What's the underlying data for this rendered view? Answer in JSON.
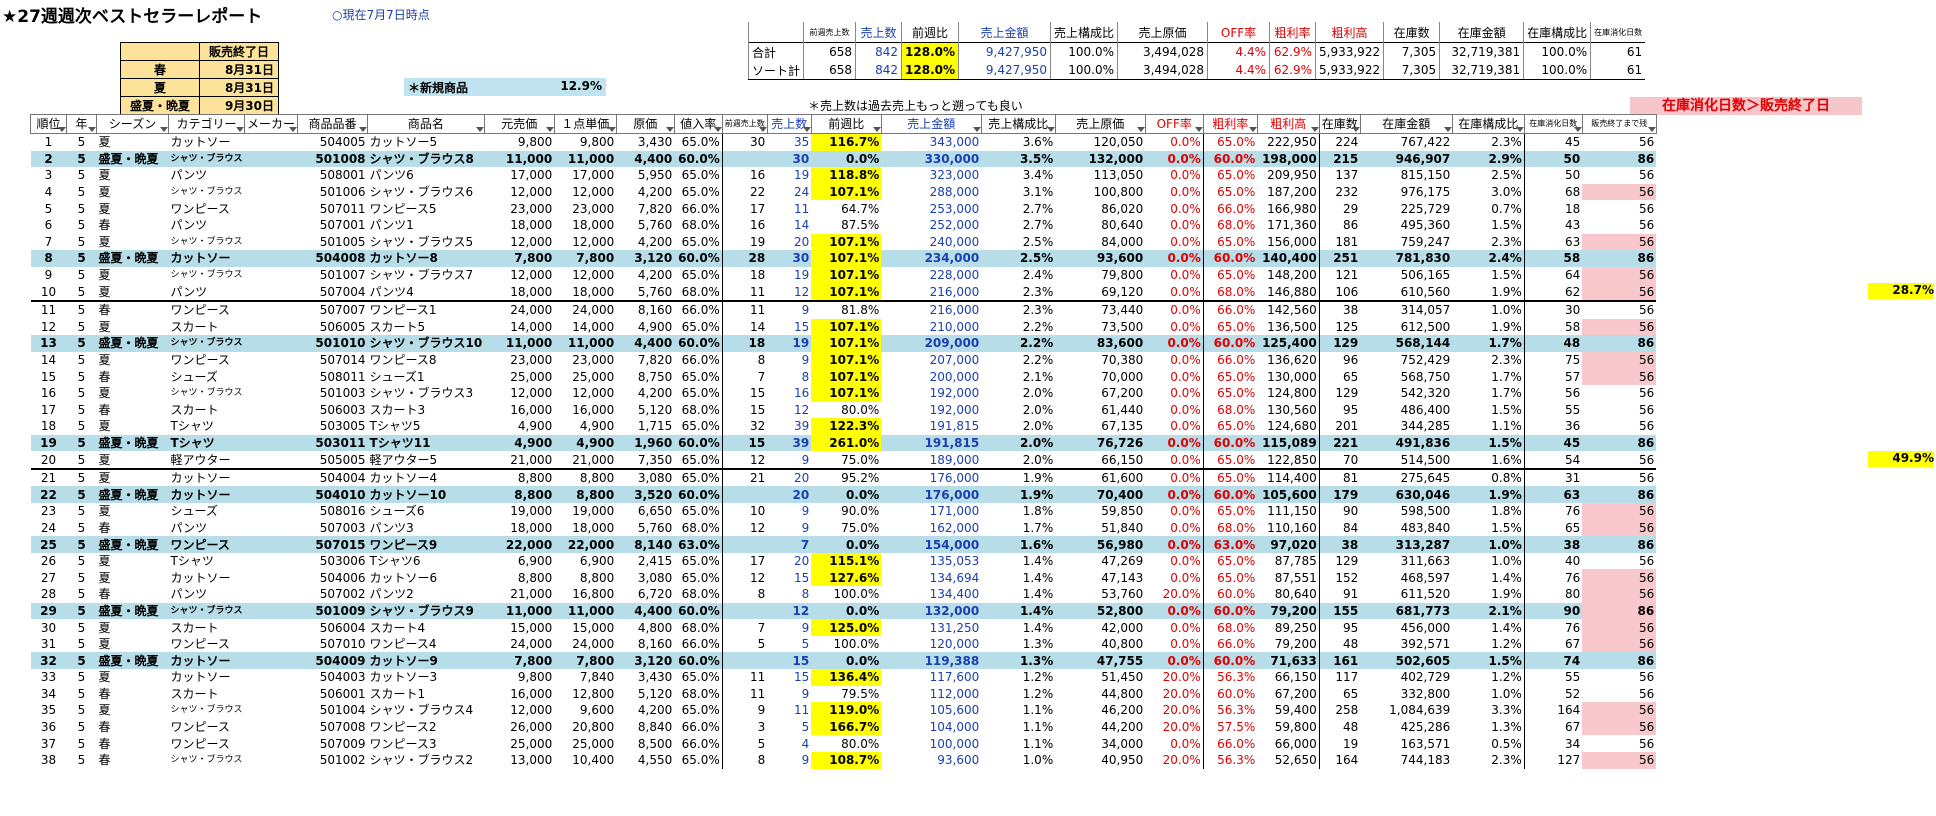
{
  "title": "★27週週次ベストセラーレポート",
  "as_of": "○現在7月7日時点",
  "season_end": {
    "header": "販売終了日",
    "rows": [
      {
        "season": "春",
        "date": "8月31日"
      },
      {
        "season": "夏",
        "date": "8月31日"
      },
      {
        "season": "盛夏・晩夏",
        "date": "9月30日"
      }
    ]
  },
  "new_products": {
    "label": "＊新規商品",
    "value": "12.9%"
  },
  "note_sales": "＊売上数は過去売上もっと遡っても良い",
  "note_alert": "在庫消化日数＞販売終了日",
  "summary": {
    "headers": [
      "",
      "前週売上数",
      "売上数",
      "前週比",
      "売上金額",
      "売上構成比",
      "売上原価",
      "OFF率",
      "粗利率",
      "粗利高",
      "在庫数",
      "在庫金額",
      "在庫構成比",
      "在庫消化日数"
    ],
    "rows": [
      [
        "合計",
        "658",
        "842",
        "128.0%",
        "9,427,950",
        "100.0%",
        "3,494,028",
        "4.4%",
        "62.9%",
        "5,933,922",
        "7,305",
        "32,719,381",
        "100.0%",
        "61"
      ],
      [
        "ソート計",
        "658",
        "842",
        "128.0%",
        "9,427,950",
        "100.0%",
        "3,494,028",
        "4.4%",
        "62.9%",
        "5,933,922",
        "7,305",
        "32,719,381",
        "100.0%",
        "61"
      ]
    ]
  },
  "headers": [
    "順位",
    "年",
    "シーズン",
    "カテゴリー",
    "メーカー",
    "商品品番",
    "商品名",
    "元売価",
    "１点単価",
    "原価",
    "値入率",
    "前週売上数",
    "売上数",
    "前週比",
    "売上金額",
    "売上構成比",
    "売上原価",
    "OFF率",
    "粗利率",
    "粗利高",
    "在庫数",
    "在庫金額",
    "在庫構成比",
    "在庫消化日数",
    "販売終了まで残"
  ],
  "rows": [
    [
      "1",
      "5",
      "夏",
      "カットソー",
      "",
      "504005",
      "カットソー5",
      "9,800",
      "9,800",
      "3,430",
      "65.0%",
      "30",
      "35",
      "116.7%",
      "343,000",
      "3.6%",
      "120,050",
      "0.0%",
      "65.0%",
      "222,950",
      "224",
      "767,422",
      "2.3%",
      "45",
      "56"
    ],
    [
      "2",
      "5",
      "盛夏・晩夏",
      "シャツ・ブラウス",
      "",
      "501008",
      "シャツ・ブラウス8",
      "11,000",
      "11,000",
      "4,400",
      "60.0%",
      "",
      "30",
      "0.0%",
      "330,000",
      "3.5%",
      "132,000",
      "0.0%",
      "60.0%",
      "198,000",
      "215",
      "946,907",
      "2.9%",
      "50",
      "86"
    ],
    [
      "3",
      "5",
      "夏",
      "パンツ",
      "",
      "508001",
      "パンツ6",
      "17,000",
      "17,000",
      "5,950",
      "65.0%",
      "16",
      "19",
      "118.8%",
      "323,000",
      "3.4%",
      "113,050",
      "0.0%",
      "65.0%",
      "209,950",
      "137",
      "815,150",
      "2.5%",
      "50",
      "56"
    ],
    [
      "4",
      "5",
      "夏",
      "シャツ・ブラウス",
      "",
      "501006",
      "シャツ・ブラウス6",
      "12,000",
      "12,000",
      "4,200",
      "65.0%",
      "22",
      "24",
      "107.1%",
      "288,000",
      "3.1%",
      "100,800",
      "0.0%",
      "65.0%",
      "187,200",
      "232",
      "976,175",
      "3.0%",
      "68",
      "56"
    ],
    [
      "5",
      "5",
      "夏",
      "ワンピース",
      "",
      "507011",
      "ワンピース5",
      "23,000",
      "23,000",
      "7,820",
      "66.0%",
      "17",
      "11",
      "64.7%",
      "253,000",
      "2.7%",
      "86,020",
      "0.0%",
      "66.0%",
      "166,980",
      "29",
      "225,729",
      "0.7%",
      "18",
      "56"
    ],
    [
      "6",
      "5",
      "春",
      "パンツ",
      "",
      "507001",
      "パンツ1",
      "18,000",
      "18,000",
      "5,760",
      "68.0%",
      "16",
      "14",
      "87.5%",
      "252,000",
      "2.7%",
      "80,640",
      "0.0%",
      "68.0%",
      "171,360",
      "86",
      "495,360",
      "1.5%",
      "43",
      "56"
    ],
    [
      "7",
      "5",
      "夏",
      "シャツ・ブラウス",
      "",
      "501005",
      "シャツ・ブラウス5",
      "12,000",
      "12,000",
      "4,200",
      "65.0%",
      "19",
      "20",
      "107.1%",
      "240,000",
      "2.5%",
      "84,000",
      "0.0%",
      "65.0%",
      "156,000",
      "181",
      "759,247",
      "2.3%",
      "63",
      "56"
    ],
    [
      "8",
      "5",
      "盛夏・晩夏",
      "カットソー",
      "",
      "504008",
      "カットソー8",
      "7,800",
      "7,800",
      "3,120",
      "60.0%",
      "28",
      "30",
      "107.1%",
      "234,000",
      "2.5%",
      "93,600",
      "0.0%",
      "60.0%",
      "140,400",
      "251",
      "781,830",
      "2.4%",
      "58",
      "86"
    ],
    [
      "9",
      "5",
      "夏",
      "シャツ・ブラウス",
      "",
      "501007",
      "シャツ・ブラウス7",
      "12,000",
      "12,000",
      "4,200",
      "65.0%",
      "18",
      "19",
      "107.1%",
      "228,000",
      "2.4%",
      "79,800",
      "0.0%",
      "65.0%",
      "148,200",
      "121",
      "506,165",
      "1.5%",
      "64",
      "56"
    ],
    [
      "10",
      "5",
      "夏",
      "パンツ",
      "",
      "507004",
      "パンツ4",
      "18,000",
      "18,000",
      "5,760",
      "68.0%",
      "11",
      "12",
      "107.1%",
      "216,000",
      "2.3%",
      "69,120",
      "0.0%",
      "68.0%",
      "146,880",
      "106",
      "610,560",
      "1.9%",
      "62",
      "56"
    ],
    [
      "11",
      "5",
      "春",
      "ワンピース",
      "",
      "507007",
      "ワンピース1",
      "24,000",
      "24,000",
      "8,160",
      "66.0%",
      "11",
      "9",
      "81.8%",
      "216,000",
      "2.3%",
      "73,440",
      "0.0%",
      "66.0%",
      "142,560",
      "38",
      "314,057",
      "1.0%",
      "30",
      "56"
    ],
    [
      "12",
      "5",
      "夏",
      "スカート",
      "",
      "506005",
      "スカート5",
      "14,000",
      "14,000",
      "4,900",
      "65.0%",
      "14",
      "15",
      "107.1%",
      "210,000",
      "2.2%",
      "73,500",
      "0.0%",
      "65.0%",
      "136,500",
      "125",
      "612,500",
      "1.9%",
      "58",
      "56"
    ],
    [
      "13",
      "5",
      "盛夏・晩夏",
      "シャツ・ブラウス",
      "",
      "501010",
      "シャツ・ブラウス10",
      "11,000",
      "11,000",
      "4,400",
      "60.0%",
      "18",
      "19",
      "107.1%",
      "209,000",
      "2.2%",
      "83,600",
      "0.0%",
      "60.0%",
      "125,400",
      "129",
      "568,144",
      "1.7%",
      "48",
      "86"
    ],
    [
      "14",
      "5",
      "夏",
      "ワンピース",
      "",
      "507014",
      "ワンピース8",
      "23,000",
      "23,000",
      "7,820",
      "66.0%",
      "8",
      "9",
      "107.1%",
      "207,000",
      "2.2%",
      "70,380",
      "0.0%",
      "66.0%",
      "136,620",
      "96",
      "752,429",
      "2.3%",
      "75",
      "56"
    ],
    [
      "15",
      "5",
      "春",
      "シューズ",
      "",
      "508011",
      "シューズ1",
      "25,000",
      "25,000",
      "8,750",
      "65.0%",
      "7",
      "8",
      "107.1%",
      "200,000",
      "2.1%",
      "70,000",
      "0.0%",
      "65.0%",
      "130,000",
      "65",
      "568,750",
      "1.7%",
      "57",
      "56"
    ],
    [
      "16",
      "5",
      "夏",
      "シャツ・ブラウス",
      "",
      "501003",
      "シャツ・ブラウス3",
      "12,000",
      "12,000",
      "4,200",
      "65.0%",
      "15",
      "16",
      "107.1%",
      "192,000",
      "2.0%",
      "67,200",
      "0.0%",
      "65.0%",
      "124,800",
      "129",
      "542,320",
      "1.7%",
      "56",
      "56"
    ],
    [
      "17",
      "5",
      "春",
      "スカート",
      "",
      "506003",
      "スカート3",
      "16,000",
      "16,000",
      "5,120",
      "68.0%",
      "15",
      "12",
      "80.0%",
      "192,000",
      "2.0%",
      "61,440",
      "0.0%",
      "68.0%",
      "130,560",
      "95",
      "486,400",
      "1.5%",
      "55",
      "56"
    ],
    [
      "18",
      "5",
      "夏",
      "Tシャツ",
      "",
      "503005",
      "Tシャツ5",
      "4,900",
      "4,900",
      "1,715",
      "65.0%",
      "32",
      "39",
      "122.3%",
      "191,815",
      "2.0%",
      "67,135",
      "0.0%",
      "65.0%",
      "124,680",
      "201",
      "344,285",
      "1.1%",
      "36",
      "56"
    ],
    [
      "19",
      "5",
      "盛夏・晩夏",
      "Tシャツ",
      "",
      "503011",
      "Tシャツ11",
      "4,900",
      "4,900",
      "1,960",
      "60.0%",
      "15",
      "39",
      "261.0%",
      "191,815",
      "2.0%",
      "76,726",
      "0.0%",
      "60.0%",
      "115,089",
      "221",
      "491,836",
      "1.5%",
      "45",
      "86"
    ],
    [
      "20",
      "5",
      "夏",
      "軽アウター",
      "",
      "505005",
      "軽アウター5",
      "21,000",
      "21,000",
      "7,350",
      "65.0%",
      "12",
      "9",
      "75.0%",
      "189,000",
      "2.0%",
      "66,150",
      "0.0%",
      "65.0%",
      "122,850",
      "70",
      "514,500",
      "1.6%",
      "54",
      "56"
    ],
    [
      "21",
      "5",
      "夏",
      "カットソー",
      "",
      "504004",
      "カットソー4",
      "8,800",
      "8,800",
      "3,080",
      "65.0%",
      "21",
      "20",
      "95.2%",
      "176,000",
      "1.9%",
      "61,600",
      "0.0%",
      "65.0%",
      "114,400",
      "81",
      "275,645",
      "0.8%",
      "31",
      "56"
    ],
    [
      "22",
      "5",
      "盛夏・晩夏",
      "カットソー",
      "",
      "504010",
      "カットソー10",
      "8,800",
      "8,800",
      "3,520",
      "60.0%",
      "",
      "20",
      "0.0%",
      "176,000",
      "1.9%",
      "70,400",
      "0.0%",
      "60.0%",
      "105,600",
      "179",
      "630,046",
      "1.9%",
      "63",
      "86"
    ],
    [
      "23",
      "5",
      "夏",
      "シューズ",
      "",
      "508016",
      "シューズ6",
      "19,000",
      "19,000",
      "6,650",
      "65.0%",
      "10",
      "9",
      "90.0%",
      "171,000",
      "1.8%",
      "59,850",
      "0.0%",
      "65.0%",
      "111,150",
      "90",
      "598,500",
      "1.8%",
      "76",
      "56"
    ],
    [
      "24",
      "5",
      "春",
      "パンツ",
      "",
      "507003",
      "パンツ3",
      "18,000",
      "18,000",
      "5,760",
      "68.0%",
      "12",
      "9",
      "75.0%",
      "162,000",
      "1.7%",
      "51,840",
      "0.0%",
      "68.0%",
      "110,160",
      "84",
      "483,840",
      "1.5%",
      "65",
      "56"
    ],
    [
      "25",
      "5",
      "盛夏・晩夏",
      "ワンピース",
      "",
      "507015",
      "ワンピース9",
      "22,000",
      "22,000",
      "8,140",
      "63.0%",
      "",
      "7",
      "0.0%",
      "154,000",
      "1.6%",
      "56,980",
      "0.0%",
      "63.0%",
      "97,020",
      "38",
      "313,287",
      "1.0%",
      "38",
      "86"
    ],
    [
      "26",
      "5",
      "夏",
      "Tシャツ",
      "",
      "503006",
      "Tシャツ6",
      "6,900",
      "6,900",
      "2,415",
      "65.0%",
      "17",
      "20",
      "115.1%",
      "135,053",
      "1.4%",
      "47,269",
      "0.0%",
      "65.0%",
      "87,785",
      "129",
      "311,663",
      "1.0%",
      "40",
      "56"
    ],
    [
      "27",
      "5",
      "夏",
      "カットソー",
      "",
      "504006",
      "カットソー6",
      "8,800",
      "8,800",
      "3,080",
      "65.0%",
      "12",
      "15",
      "127.6%",
      "134,694",
      "1.4%",
      "47,143",
      "0.0%",
      "65.0%",
      "87,551",
      "152",
      "468,597",
      "1.4%",
      "76",
      "56"
    ],
    [
      "28",
      "5",
      "春",
      "パンツ",
      "",
      "507002",
      "パンツ2",
      "21,000",
      "16,800",
      "6,720",
      "68.0%",
      "8",
      "8",
      "100.0%",
      "134,400",
      "1.4%",
      "53,760",
      "20.0%",
      "60.0%",
      "80,640",
      "91",
      "611,520",
      "1.9%",
      "80",
      "56"
    ],
    [
      "29",
      "5",
      "盛夏・晩夏",
      "シャツ・ブラウス",
      "",
      "501009",
      "シャツ・ブラウス9",
      "11,000",
      "11,000",
      "4,400",
      "60.0%",
      "",
      "12",
      "0.0%",
      "132,000",
      "1.4%",
      "52,800",
      "0.0%",
      "60.0%",
      "79,200",
      "155",
      "681,773",
      "2.1%",
      "90",
      "86"
    ],
    [
      "30",
      "5",
      "夏",
      "スカート",
      "",
      "506004",
      "スカート4",
      "15,000",
      "15,000",
      "4,800",
      "68.0%",
      "7",
      "9",
      "125.0%",
      "131,250",
      "1.4%",
      "42,000",
      "0.0%",
      "68.0%",
      "89,250",
      "95",
      "456,000",
      "1.4%",
      "76",
      "56"
    ],
    [
      "31",
      "5",
      "夏",
      "ワンピース",
      "",
      "507010",
      "ワンピース4",
      "24,000",
      "24,000",
      "8,160",
      "66.0%",
      "5",
      "5",
      "100.0%",
      "120,000",
      "1.3%",
      "40,800",
      "0.0%",
      "66.0%",
      "79,200",
      "48",
      "392,571",
      "1.2%",
      "67",
      "56"
    ],
    [
      "32",
      "5",
      "盛夏・晩夏",
      "カットソー",
      "",
      "504009",
      "カットソー9",
      "7,800",
      "7,800",
      "3,120",
      "60.0%",
      "",
      "15",
      "0.0%",
      "119,388",
      "1.3%",
      "47,755",
      "0.0%",
      "60.0%",
      "71,633",
      "161",
      "502,605",
      "1.5%",
      "74",
      "86"
    ],
    [
      "33",
      "5",
      "夏",
      "カットソー",
      "",
      "504003",
      "カットソー3",
      "9,800",
      "7,840",
      "3,430",
      "65.0%",
      "11",
      "15",
      "136.4%",
      "117,600",
      "1.2%",
      "51,450",
      "20.0%",
      "56.3%",
      "66,150",
      "117",
      "402,729",
      "1.2%",
      "55",
      "56"
    ],
    [
      "34",
      "5",
      "春",
      "スカート",
      "",
      "506001",
      "スカート1",
      "16,000",
      "12,800",
      "5,120",
      "68.0%",
      "11",
      "9",
      "79.5%",
      "112,000",
      "1.2%",
      "44,800",
      "20.0%",
      "60.0%",
      "67,200",
      "65",
      "332,800",
      "1.0%",
      "52",
      "56"
    ],
    [
      "35",
      "5",
      "夏",
      "シャツ・ブラウス",
      "",
      "501004",
      "シャツ・ブラウス4",
      "12,000",
      "9,600",
      "4,200",
      "65.0%",
      "9",
      "11",
      "119.0%",
      "105,600",
      "1.1%",
      "46,200",
      "20.0%",
      "56.3%",
      "59,400",
      "258",
      "1,084,639",
      "3.3%",
      "164",
      "56"
    ],
    [
      "36",
      "5",
      "春",
      "ワンピース",
      "",
      "507008",
      "ワンピース2",
      "26,000",
      "20,800",
      "8,840",
      "66.0%",
      "3",
      "5",
      "166.7%",
      "104,000",
      "1.1%",
      "44,200",
      "20.0%",
      "57.5%",
      "59,800",
      "48",
      "425,286",
      "1.3%",
      "67",
      "56"
    ],
    [
      "37",
      "5",
      "春",
      "ワンピース",
      "",
      "507009",
      "ワンピース3",
      "25,000",
      "25,000",
      "8,500",
      "66.0%",
      "5",
      "4",
      "80.0%",
      "100,000",
      "1.1%",
      "34,000",
      "0.0%",
      "66.0%",
      "66,000",
      "19",
      "163,571",
      "0.5%",
      "34",
      "56"
    ],
    [
      "38",
      "5",
      "春",
      "シャツ・ブラウス",
      "",
      "501002",
      "シャツ・ブラウス2",
      "13,000",
      "10,400",
      "4,550",
      "65.0%",
      "8",
      "9",
      "108.7%",
      "93,600",
      "1.0%",
      "40,950",
      "20.0%",
      "56.3%",
      "52,650",
      "164",
      "744,183",
      "2.3%",
      "127",
      "56"
    ]
  ],
  "cumulative_markers": [
    {
      "after_row": "10",
      "value": "28.7%"
    },
    {
      "after_row": "20",
      "value": "49.9%"
    }
  ],
  "colors": {
    "highlight_row": "#b6dde8",
    "yellow": "#ffff00",
    "alert_pink": "#f8c8cc",
    "blue_text": "#1a3fb0",
    "red_text": "#e00000"
  }
}
